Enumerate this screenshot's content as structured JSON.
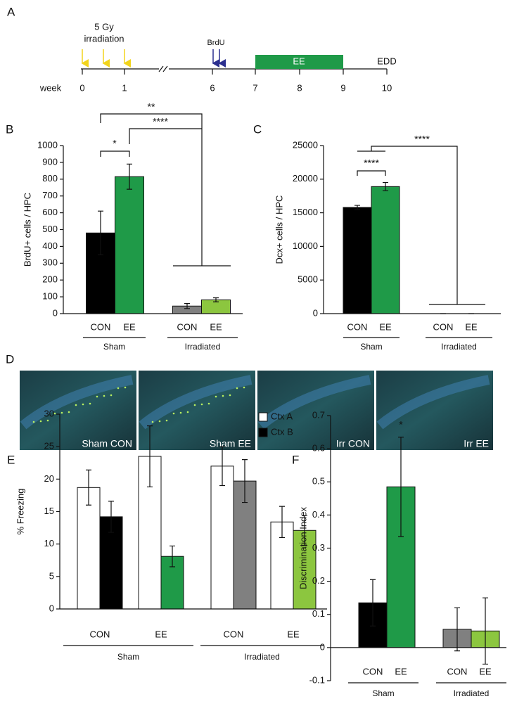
{
  "timeline": {
    "panel_label": "A",
    "axis_label": "week",
    "weeks": [
      "0",
      "1",
      "6",
      "7",
      "8",
      "9",
      "10"
    ],
    "irradiation": [
      "5 Gy",
      "irradiation"
    ],
    "brdu": "BrdU",
    "ee": "EE",
    "edd": "EDD"
  },
  "images": {
    "panel_label": "D",
    "labels": [
      "Sham CON",
      "Sham EE",
      "Irr CON",
      "Irr EE"
    ]
  },
  "chart_data": [
    {
      "type": "bar",
      "panel_label": "B",
      "y_label": "BrdU+ cells / HPC",
      "categories": [
        "CON",
        "EE",
        "CON",
        "EE"
      ],
      "groups": [
        "Sham",
        "Irradiated"
      ],
      "values": [
        480,
        815,
        45,
        82
      ],
      "errors": [
        130,
        75,
        15,
        12
      ],
      "colors": [
        "#000000",
        "#1f9a48",
        "#808080",
        "#8cc63f"
      ],
      "ylim": [
        0,
        1000
      ],
      "yticks": [
        0,
        100,
        200,
        300,
        400,
        500,
        600,
        700,
        800,
        900,
        1000
      ],
      "annotations": [
        "*",
        "****",
        "**"
      ]
    },
    {
      "type": "bar",
      "panel_label": "C",
      "y_label": "Dcx+ cells / HPC",
      "categories": [
        "CON",
        "EE",
        "CON",
        "EE"
      ],
      "groups": [
        "Sham",
        "Irradiated"
      ],
      "values": [
        15800,
        18900,
        0,
        0
      ],
      "errors": [
        300,
        600,
        0,
        0
      ],
      "colors": [
        "#000000",
        "#1f9a48",
        "#808080",
        "#8cc63f"
      ],
      "ylim": [
        0,
        25000
      ],
      "yticks": [
        0,
        5000,
        10000,
        15000,
        20000,
        25000
      ],
      "annotations": [
        "****",
        "****"
      ]
    },
    {
      "type": "bar",
      "panel_label": "E",
      "y_label": "% Freezing",
      "categories": [
        "CON",
        "EE",
        "CON",
        "EE"
      ],
      "groups": [
        "Sham",
        "Irradiated"
      ],
      "series": [
        {
          "name": "Ctx A",
          "color": "#ffffff",
          "values": [
            18.7,
            23.5,
            22,
            13.4
          ],
          "errors": [
            2.7,
            4.7,
            3,
            2.4
          ]
        },
        {
          "name": "Ctx B",
          "color": "#000000",
          "colors": [
            "#000000",
            "#1f9a48",
            "#808080",
            "#8cc63f"
          ],
          "values": [
            14.2,
            8.1,
            19.7,
            12.1
          ],
          "errors": [
            2.4,
            1.6,
            3.3,
            2.3
          ]
        }
      ],
      "legend": "top-right",
      "ylim": [
        0,
        30
      ],
      "yticks": [
        0,
        5,
        10,
        15,
        20,
        25,
        30
      ]
    },
    {
      "type": "bar",
      "panel_label": "F",
      "y_label": "Discrimination Index",
      "categories": [
        "CON",
        "EE",
        "CON",
        "EE"
      ],
      "groups": [
        "Sham",
        "Irradiated"
      ],
      "values": [
        0.135,
        0.485,
        0.055,
        0.05
      ],
      "errors": [
        0.07,
        0.15,
        0.065,
        0.1
      ],
      "colors": [
        "#000000",
        "#1f9a48",
        "#808080",
        "#8cc63f"
      ],
      "ylim": [
        -0.1,
        0.7
      ],
      "yticks": [
        -0.1,
        0,
        0.1,
        0.2,
        0.3,
        0.4,
        0.5,
        0.6,
        0.7
      ],
      "annotations": [
        "*"
      ]
    }
  ]
}
